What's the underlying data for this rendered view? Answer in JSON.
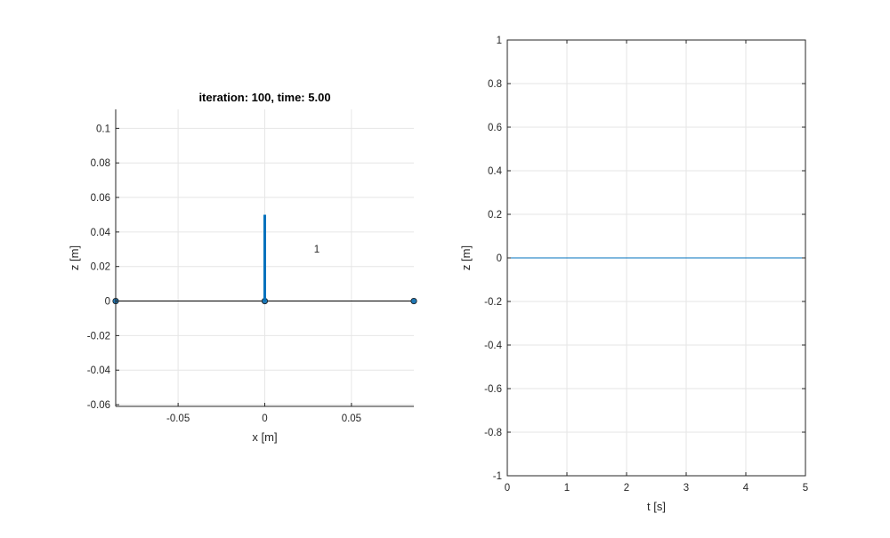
{
  "figure_bg": "#ffffff",
  "chart_data": [
    {
      "type": "line",
      "title": "iteration: 100, time: 5.00",
      "xlabel": "x [m]",
      "ylabel": "z [m]",
      "xlim": [
        -0.086,
        0.086
      ],
      "ylim": [
        -0.061,
        0.111
      ],
      "xticks": [
        -0.05,
        0,
        0.05
      ],
      "xtick_labels": [
        "-0.05",
        "0",
        "0.05"
      ],
      "yticks": [
        -0.06,
        -0.04,
        -0.02,
        0,
        0.02,
        0.04,
        0.06,
        0.08,
        0.1
      ],
      "ytick_labels": [
        "-0.06",
        "-0.04",
        "-0.02",
        "0",
        "0.02",
        "0.04",
        "0.06",
        "0.08",
        "0.1"
      ],
      "grid": true,
      "box": "top-right-open",
      "series": [
        {
          "kind": "line-with-markers",
          "color": "#000000",
          "marker_color": "#1f77b4",
          "x": [
            -0.086,
            0,
            0.086
          ],
          "y": [
            0,
            0,
            0
          ]
        },
        {
          "kind": "thick-line",
          "color": "#0072bd",
          "x": [
            0,
            0
          ],
          "y": [
            0,
            0.05
          ]
        }
      ],
      "annotations": [
        {
          "text": "1",
          "x": 0.03,
          "y": 0.028
        }
      ]
    },
    {
      "type": "line",
      "title": "",
      "xlabel": "t [s]",
      "ylabel": "z [m]",
      "xlim": [
        0,
        5
      ],
      "ylim": [
        -1,
        1
      ],
      "xticks": [
        0,
        1,
        2,
        3,
        4,
        5
      ],
      "xtick_labels": [
        "0",
        "1",
        "2",
        "3",
        "4",
        "5"
      ],
      "yticks": [
        -1,
        -0.8,
        -0.6,
        -0.4,
        -0.2,
        0,
        0.2,
        0.4,
        0.6,
        0.8,
        1
      ],
      "ytick_labels": [
        "-1",
        "-0.8",
        "-0.6",
        "-0.4",
        "-0.2",
        "0",
        "0.2",
        "0.4",
        "0.6",
        "0.8",
        "1"
      ],
      "grid": true,
      "box": "full",
      "series": [
        {
          "kind": "line",
          "color": "#0072bd",
          "x": [
            0,
            5
          ],
          "y": [
            0,
            0
          ]
        }
      ]
    }
  ]
}
